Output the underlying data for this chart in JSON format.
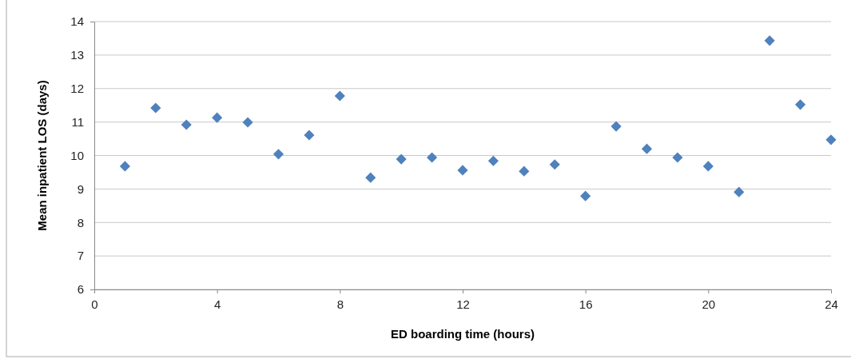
{
  "chart_data": {
    "type": "scatter",
    "xlabel": "ED boarding time (hours)",
    "ylabel": "Mean inpatient LOS (days)",
    "x": [
      1,
      2,
      3,
      4,
      5,
      6,
      7,
      8,
      9,
      10,
      11,
      12,
      13,
      14,
      15,
      16,
      17,
      18,
      19,
      20,
      21,
      22,
      23,
      24
    ],
    "series": [
      {
        "color": "#4f81bd",
        "values": [
          9.68,
          11.42,
          10.92,
          11.13,
          10.99,
          10.04,
          10.61,
          11.78,
          9.34,
          9.89,
          9.94,
          9.56,
          9.84,
          9.53,
          9.73,
          8.79,
          10.87,
          10.2,
          9.94,
          9.68,
          8.91,
          13.43,
          11.52,
          10.47
        ]
      }
    ],
    "xlim": [
      0,
      24
    ],
    "xticks": [
      0,
      4,
      8,
      12,
      16,
      20,
      24
    ],
    "ylim": [
      6,
      14
    ],
    "yticks": [
      6,
      7,
      8,
      9,
      10,
      11,
      12,
      13,
      14
    ],
    "grid": "y",
    "marker": "diamond"
  }
}
